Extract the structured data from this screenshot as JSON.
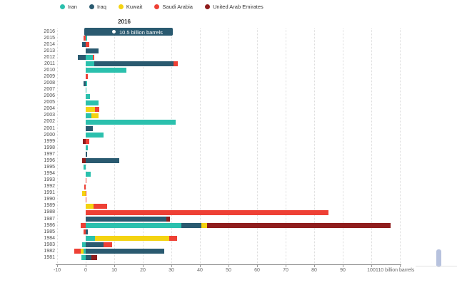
{
  "legend": {
    "items": [
      {
        "label": "Iran",
        "color": "#2bc0ad"
      },
      {
        "label": "Iraq",
        "color": "#2a5a70"
      },
      {
        "label": "Kuwait",
        "color": "#f4d311"
      },
      {
        "label": "Saudi Arabia",
        "color": "#ee4035"
      },
      {
        "label": "United Arab Emirates",
        "color": "#8f1d1d"
      }
    ]
  },
  "tooltip": {
    "title": "2016",
    "text": "10.5 billion barrels",
    "value": 10.5,
    "background": "#2a5a70",
    "marker": "white-dot"
  },
  "chart_data": {
    "type": "bar",
    "orientation": "horizontal",
    "stacked": true,
    "grid": true,
    "legend_position": "top",
    "unit": "billion barrels",
    "xlabel": "billion barrels",
    "xlim": [
      -10,
      110
    ],
    "xticks": [
      -10,
      0,
      10,
      20,
      30,
      40,
      50,
      60,
      70,
      80,
      90,
      100,
      110
    ],
    "xtick_labels": [
      "-10",
      "0",
      "10",
      "20",
      "30",
      "40",
      "50",
      "60",
      "70",
      "80",
      "90",
      "100",
      "110 billion barrels"
    ],
    "categories": [
      "2016",
      "2015",
      "2014",
      "2013",
      "2012",
      "2011",
      "2010",
      "2009",
      "2008",
      "2007",
      "2006",
      "2005",
      "2004",
      "2003",
      "2002",
      "2001",
      "2000",
      "1999",
      "1998",
      "1997",
      "1996",
      "1995",
      "1994",
      "1993",
      "1992",
      "1991",
      "1990",
      "1989",
      "1988",
      "1987",
      "1986",
      "1985",
      "1984",
      "1983",
      "1982",
      "1981"
    ],
    "series": [
      {
        "name": "Iran",
        "color": "#2bc0ad",
        "values": [
          0,
          0.5,
          0,
          0,
          2.5,
          3.0,
          14.2,
          0,
          0.5,
          0.2,
          1.5,
          4.5,
          0,
          2.0,
          31.5,
          0,
          6.3,
          0,
          0.8,
          0,
          0,
          -0.8,
          1.8,
          0,
          0,
          0,
          0,
          0,
          0,
          0,
          33.5,
          0,
          3.3,
          -1.2,
          -0.7,
          -1.5
        ]
      },
      {
        "name": "Iraq",
        "color": "#2a5a70",
        "values": [
          10.5,
          0,
          -1.2,
          4.5,
          -2.7,
          27.8,
          0,
          0,
          -0.7,
          0,
          0,
          0,
          0,
          0,
          0,
          2.5,
          0,
          0,
          0,
          0.5,
          11.8,
          0,
          0,
          0,
          0,
          0,
          0,
          0,
          0,
          28.3,
          6.9,
          0.7,
          0,
          6.2,
          27.5,
          2.0
        ]
      },
      {
        "name": "Kuwait",
        "color": "#f4d311",
        "values": [
          0,
          0,
          0,
          0,
          0,
          0,
          0,
          0,
          0,
          0,
          0,
          0,
          3.2,
          2.4,
          0,
          0,
          0,
          0,
          0,
          0,
          0,
          0,
          0,
          0,
          0,
          -1.2,
          0,
          2.7,
          0,
          0,
          2.1,
          0,
          25.9,
          0,
          -1.0,
          0
        ]
      },
      {
        "name": "Saudi Arabia",
        "color": "#ee4035",
        "values": [
          0,
          -0.8,
          1.3,
          0,
          0.5,
          1.5,
          0,
          0.8,
          0,
          0,
          0,
          0,
          1.6,
          0,
          0,
          0,
          0,
          1.3,
          0,
          0,
          0,
          0,
          0,
          0.3,
          -0.4,
          0.3,
          0.3,
          4.8,
          85.0,
          0,
          -1.7,
          -0.7,
          2.9,
          3.1,
          -2.3,
          0
        ]
      },
      {
        "name": "United Arab Emirates",
        "color": "#8f1d1d",
        "values": [
          0,
          0,
          0,
          0,
          0,
          0,
          0,
          0,
          0,
          0,
          0,
          0,
          0,
          0,
          0,
          0,
          0,
          -1.0,
          0,
          0,
          -1.2,
          0,
          0,
          0,
          0,
          0,
          0,
          0,
          0,
          1.3,
          64.2,
          0,
          0,
          0,
          0,
          1.9
        ]
      }
    ]
  }
}
